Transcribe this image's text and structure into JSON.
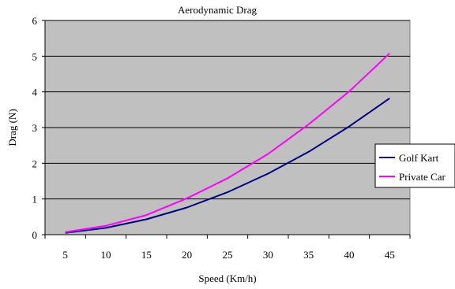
{
  "chart_data": {
    "type": "line",
    "title": "Aerodynamic Drag",
    "xlabel": "Speed (Km/h)",
    "ylabel": "Drag (N)",
    "categories": [
      "5",
      "10",
      "15",
      "20",
      "25",
      "30",
      "35",
      "40",
      "45"
    ],
    "ylim": [
      0,
      6
    ],
    "yticks": [
      "0",
      "1",
      "2",
      "3",
      "4",
      "5",
      "6"
    ],
    "grid": true,
    "legend_position": "right",
    "plot_background": "#c0c0c0",
    "series": [
      {
        "name": "Golf Kart",
        "color": "#000080",
        "values": [
          0.05,
          0.19,
          0.43,
          0.76,
          1.19,
          1.71,
          2.32,
          3.03,
          3.82
        ]
      },
      {
        "name": "Private Car",
        "color": "#ff00ff",
        "values": [
          0.07,
          0.25,
          0.55,
          1.02,
          1.58,
          2.26,
          3.09,
          4.01,
          5.08
        ]
      }
    ]
  }
}
